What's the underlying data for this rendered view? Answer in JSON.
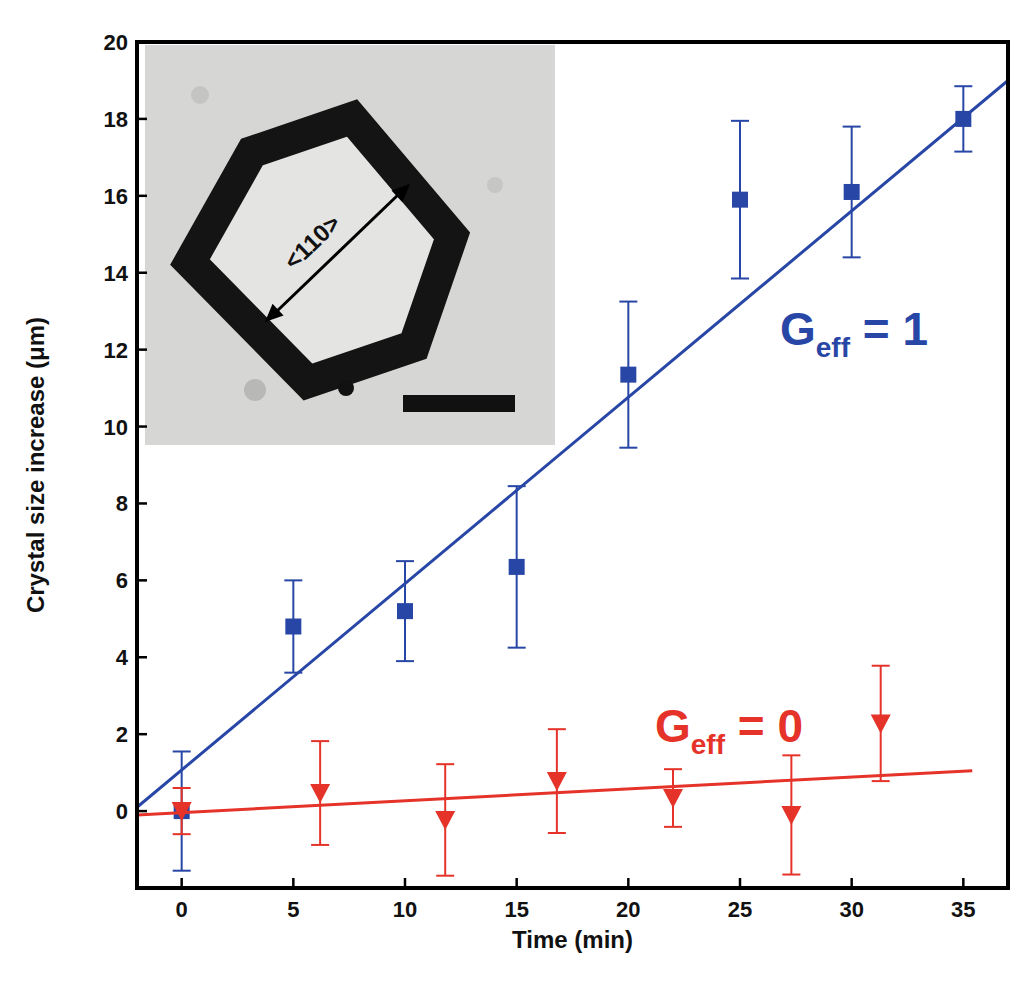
{
  "chart_data": {
    "type": "scatter",
    "x_label": "Time (min)",
    "y_label": "Crystal size increase (μm)",
    "xlim": [
      -2,
      37
    ],
    "ylim": [
      -2,
      20
    ],
    "xticks": [
      0,
      5,
      10,
      15,
      20,
      25,
      30,
      35
    ],
    "yticks": [
      0,
      2,
      4,
      6,
      8,
      10,
      12,
      14,
      16,
      18,
      20
    ],
    "grid": false,
    "inset_label": "<110>",
    "series": [
      {
        "name": "Geff = 1",
        "color": "#2746a6",
        "marker": "square",
        "x": [
          0,
          5,
          10,
          15,
          20,
          25,
          30,
          35
        ],
        "values": [
          0,
          4.8,
          5.2,
          6.35,
          11.35,
          15.9,
          16.1,
          18.0
        ],
        "errors": [
          1.55,
          1.2,
          1.3,
          2.1,
          1.9,
          2.05,
          1.7,
          0.85
        ],
        "fit_x": [
          -2,
          37
        ],
        "fit_y": [
          0.1,
          19.0
        ]
      },
      {
        "name": "Geff = 0",
        "color": "#e5332a",
        "marker": "triangle-down",
        "x": [
          0,
          6.2,
          11.8,
          16.8,
          22.0,
          27.3,
          31.3
        ],
        "values": [
          0,
          0.47,
          -0.23,
          0.78,
          0.34,
          -0.1,
          2.28
        ],
        "errors": [
          0.6,
          1.35,
          1.45,
          1.35,
          0.75,
          1.55,
          1.5
        ],
        "fit_x": [
          -2,
          35.4
        ],
        "fit_y": [
          -0.1,
          1.05
        ]
      }
    ]
  }
}
